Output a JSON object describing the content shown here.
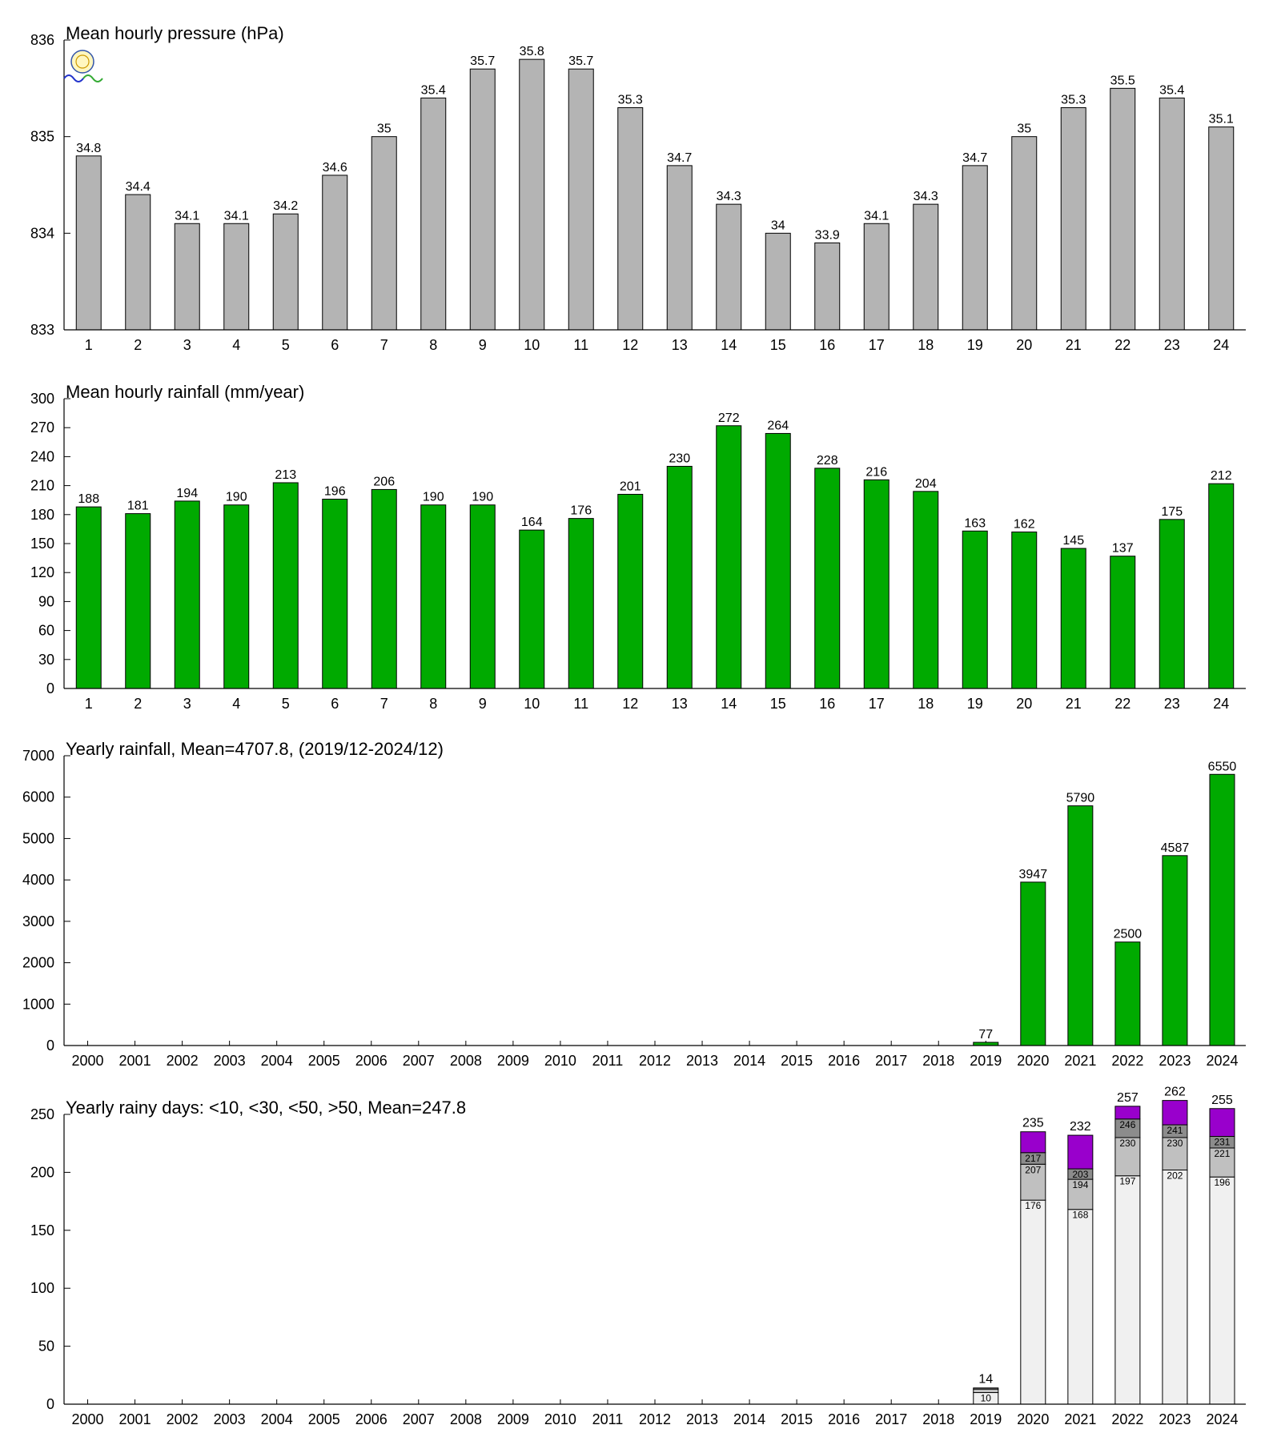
{
  "chart_data": [
    {
      "type": "bar",
      "title": "Mean hourly pressure (hPa)",
      "categories": [
        "1",
        "2",
        "3",
        "4",
        "5",
        "6",
        "7",
        "8",
        "9",
        "10",
        "11",
        "12",
        "13",
        "14",
        "15",
        "16",
        "17",
        "18",
        "19",
        "20",
        "21",
        "22",
        "23",
        "24"
      ],
      "values": [
        834.8,
        834.4,
        834.1,
        834.1,
        834.2,
        834.6,
        835.0,
        835.4,
        835.7,
        835.8,
        835.7,
        835.3,
        834.7,
        834.3,
        834.0,
        833.9,
        834.1,
        834.3,
        834.7,
        835.0,
        835.3,
        835.5,
        835.4,
        835.1
      ],
      "data_labels": [
        "34.8",
        "34.4",
        "34.1",
        "34.1",
        "34.2",
        "34.6",
        "35",
        "35.4",
        "35.7",
        "35.8",
        "35.7",
        "35.3",
        "34.7",
        "34.3",
        "34",
        "33.9",
        "34.1",
        "34.3",
        "34.7",
        "35",
        "35.3",
        "35.5",
        "35.4",
        "35.1"
      ],
      "ylim": [
        833,
        836
      ],
      "yticks": [
        833,
        834,
        835,
        836
      ],
      "color": "#b4b4b4",
      "grid": false,
      "logo": "lab-logo-icon"
    },
    {
      "type": "bar",
      "title": "Mean hourly rainfall (mm/year)",
      "categories": [
        "1",
        "2",
        "3",
        "4",
        "5",
        "6",
        "7",
        "8",
        "9",
        "10",
        "11",
        "12",
        "13",
        "14",
        "15",
        "16",
        "17",
        "18",
        "19",
        "20",
        "21",
        "22",
        "23",
        "24"
      ],
      "values": [
        188,
        181,
        194,
        190,
        213,
        196,
        206,
        190,
        190,
        164,
        176,
        201,
        230,
        272,
        264,
        228,
        216,
        204,
        163,
        162,
        145,
        137,
        175,
        212
      ],
      "ylim": [
        0,
        300
      ],
      "yticks": [
        0,
        30,
        60,
        90,
        120,
        150,
        180,
        210,
        240,
        270,
        300
      ],
      "color": "#00aa00",
      "grid": false
    },
    {
      "type": "bar",
      "title": "Yearly rainfall, Mean=4707.8, (2019/12-2024/12)",
      "categories": [
        "2000",
        "2001",
        "2002",
        "2003",
        "2004",
        "2005",
        "2006",
        "2007",
        "2008",
        "2009",
        "2010",
        "2011",
        "2012",
        "2013",
        "2014",
        "2015",
        "2016",
        "2017",
        "2018",
        "2019",
        "2020",
        "2021",
        "2022",
        "2023",
        "2024"
      ],
      "values": [
        null,
        null,
        null,
        null,
        null,
        null,
        null,
        null,
        null,
        null,
        null,
        null,
        null,
        null,
        null,
        null,
        null,
        null,
        null,
        77,
        3947,
        5790,
        2500,
        4587,
        6550
      ],
      "ylim": [
        0,
        7000
      ],
      "yticks": [
        0,
        1000,
        2000,
        3000,
        4000,
        5000,
        6000,
        7000
      ],
      "color": "#00aa00",
      "grid": false
    },
    {
      "type": "bar",
      "stacked": true,
      "title": "Yearly rainy days: <10, <30, <50, >50, Mean=247.8",
      "categories": [
        "2000",
        "2001",
        "2002",
        "2003",
        "2004",
        "2005",
        "2006",
        "2007",
        "2008",
        "2009",
        "2010",
        "2011",
        "2012",
        "2013",
        "2014",
        "2015",
        "2016",
        "2017",
        "2018",
        "2019",
        "2020",
        "2021",
        "2022",
        "2023",
        "2024"
      ],
      "ylim": [
        0,
        250
      ],
      "yticks": [
        0,
        50,
        100,
        150,
        200,
        250
      ],
      "grid": false,
      "series": [
        {
          "name": "<10",
          "color": "#f0f0f0",
          "cumulative": [
            null,
            null,
            null,
            null,
            null,
            null,
            null,
            null,
            null,
            null,
            null,
            null,
            null,
            null,
            null,
            null,
            null,
            null,
            null,
            10,
            176,
            168,
            197,
            202,
            196
          ]
        },
        {
          "name": "<30",
          "color": "#c0c0c0",
          "cumulative": [
            null,
            null,
            null,
            null,
            null,
            null,
            null,
            null,
            null,
            null,
            null,
            null,
            null,
            null,
            null,
            null,
            null,
            null,
            null,
            13,
            207,
            194,
            230,
            230,
            221
          ]
        },
        {
          "name": "<50",
          "color": "#8c8c8c",
          "cumulative": [
            null,
            null,
            null,
            null,
            null,
            null,
            null,
            null,
            null,
            null,
            null,
            null,
            null,
            null,
            null,
            null,
            null,
            null,
            null,
            14,
            217,
            203,
            246,
            241,
            231
          ]
        },
        {
          "name": ">50",
          "color": "#9900cc",
          "cumulative": [
            null,
            null,
            null,
            null,
            null,
            null,
            null,
            null,
            null,
            null,
            null,
            null,
            null,
            null,
            null,
            null,
            null,
            null,
            null,
            14,
            235,
            232,
            257,
            262,
            255
          ]
        }
      ],
      "segment_labels": {
        "2019": [
          "10",
          "",
          "",
          ""
        ],
        "2020": [
          "176",
          "207",
          "217",
          ""
        ],
        "2021": [
          "168",
          "194",
          "203",
          ""
        ],
        "2022": [
          "197",
          "230",
          "246",
          ""
        ],
        "2023": [
          "202",
          "230",
          "241",
          ""
        ],
        "2024": [
          "196",
          "221",
          "231",
          ""
        ]
      },
      "totals": [
        null,
        null,
        null,
        null,
        null,
        null,
        null,
        null,
        null,
        null,
        null,
        null,
        null,
        null,
        null,
        null,
        null,
        null,
        null,
        14,
        235,
        232,
        257,
        262,
        255
      ]
    }
  ]
}
